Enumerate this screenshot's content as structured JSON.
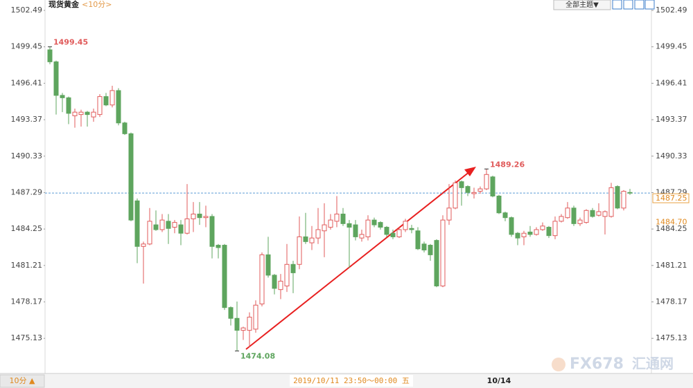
{
  "chart_data": {
    "type": "candlestick",
    "title": "现货黄金",
    "subtitle": "<10分>",
    "toolbar": "全部主题▼",
    "period_button": "10分 ▲",
    "cursor_label": "2019/10/11 23:50～00:00 五",
    "watermark": [
      "FX678",
      "汇通网"
    ],
    "up_color": "#e05a5a",
    "down_color": "#5ea55e",
    "ylim": [
      1472.2,
      1502.49
    ],
    "yticks": [
      1475.13,
      1478.17,
      1481.21,
      1484.25,
      1487.29,
      1490.33,
      1493.37,
      1496.41,
      1499.45,
      1502.49
    ],
    "categories": [
      null,
      null,
      null,
      null,
      null,
      null,
      null,
      null,
      null,
      null,
      null,
      null,
      null,
      null,
      null,
      null,
      null,
      null,
      null,
      null,
      null,
      null,
      null,
      null,
      null,
      null,
      null,
      null,
      null,
      null,
      null,
      null,
      null,
      null,
      null,
      null,
      null,
      null,
      null,
      null,
      null,
      null,
      null,
      null,
      null,
      null,
      null,
      null,
      null,
      null,
      null,
      null,
      null,
      null,
      null,
      null,
      null,
      null,
      null,
      null,
      null,
      null,
      null,
      null,
      null,
      null,
      null,
      null,
      null,
      null,
      null,
      null,
      "10/14",
      null,
      null,
      null,
      null,
      null,
      null,
      null,
      null,
      null,
      null,
      null,
      null,
      null,
      null,
      null,
      null,
      null,
      null,
      null,
      null,
      null
    ],
    "open": [
      1499.2,
      1498.2,
      1495.4,
      1495.2,
      1493.7,
      1493.8,
      1494.0,
      1493.6,
      1493.8,
      1495.3,
      1494.6,
      1495.8,
      1493.1,
      1492.2,
      1486.6,
      1482.8,
      1483.0,
      1484.6,
      1484.2,
      1484.9,
      1484.4,
      1484.6,
      1483.9,
      1485.1,
      1485.5,
      1485.2,
      1485.3,
      1482.9,
      1482.9,
      1477.7,
      1476.8,
      1475.8,
      1475.8,
      1475.9,
      1478.0,
      1482.1,
      1480.4,
      1479.2,
      1479.5,
      1481.3,
      1481.3,
      1483.6,
      1483.1,
      1483.5,
      1484.1,
      1484.4,
      1484.9,
      1485.5,
      1484.7,
      1484.6,
      1483.5,
      1483.6,
      1485.0,
      1484.8,
      1484.4,
      1483.9,
      1483.6,
      1484.2,
      1484.3,
      1484.1,
      1483.0,
      1482.9,
      1483.3,
      1479.5,
      1485.0,
      1486.0,
      1488.2,
      1487.8,
      1487.2,
      1487.4,
      1487.6,
      1488.6,
      1487.0,
      1485.6,
      1485.2,
      1483.9,
      1483.6,
      1484.0,
      1483.8,
      1484.2,
      1484.4,
      1483.7,
      1484.9,
      1485.2,
      1486.0,
      1484.7,
      1484.8,
      1485.8,
      1485.4,
      1485.3,
      1485.3,
      1487.8,
      1486.0,
      1487.3
    ],
    "close": [
      1498.2,
      1495.4,
      1495.2,
      1493.9,
      1494.0,
      1494.0,
      1493.8,
      1494.0,
      1495.3,
      1494.6,
      1495.8,
      1493.1,
      1492.2,
      1485.0,
      1482.8,
      1483.0,
      1484.9,
      1484.2,
      1485.0,
      1484.3,
      1484.8,
      1483.9,
      1485.1,
      1485.5,
      1485.2,
      1485.3,
      1482.8,
      1482.7,
      1477.7,
      1476.8,
      1475.8,
      1476.0,
      1476.9,
      1477.9,
      1482.1,
      1480.4,
      1479.3,
      1479.9,
      1481.3,
      1480.6,
      1483.6,
      1483.2,
      1483.5,
      1484.2,
      1484.6,
      1485.0,
      1485.5,
      1484.7,
      1484.4,
      1483.6,
      1483.8,
      1485.0,
      1484.6,
      1484.4,
      1483.8,
      1483.6,
      1484.2,
      1484.9,
      1484.2,
      1482.6,
      1482.5,
      1482.1,
      1479.5,
      1485.0,
      1486.0,
      1488.1,
      1487.7,
      1487.3,
      1487.3,
      1487.6,
      1488.8,
      1487.0,
      1485.6,
      1485.2,
      1483.8,
      1483.5,
      1483.9,
      1483.8,
      1484.2,
      1484.5,
      1483.7,
      1484.9,
      1485.3,
      1486.0,
      1484.7,
      1485.0,
      1485.8,
      1485.3,
      1485.7,
      1485.7,
      1487.7,
      1486.0,
      1487.4,
      1487.25
    ],
    "high": [
      1499.45,
      1498.3,
      1495.6,
      1495.3,
      1494.3,
      1494.2,
      1494.1,
      1494.3,
      1495.5,
      1495.6,
      1496.2,
      1496.0,
      1493.2,
      1492.3,
      1486.8,
      1483.2,
      1486.0,
      1485.8,
      1485.5,
      1485.5,
      1485.0,
      1485.0,
      1488.0,
      1486.5,
      1486.5,
      1486.2,
      1485.5,
      1483.0,
      1483.0,
      1477.8,
      1478.2,
      1476.1,
      1477.3,
      1478.3,
      1482.3,
      1483.6,
      1480.5,
      1480.5,
      1483.0,
      1481.6,
      1485.3,
      1485.6,
      1484.5,
      1486.0,
      1486.4,
      1485.5,
      1487.0,
      1486.0,
      1485.0,
      1485.0,
      1484.2,
      1485.4,
      1485.2,
      1484.9,
      1484.5,
      1484.2,
      1484.4,
      1485.1,
      1484.6,
      1484.4,
      1483.2,
      1483.0,
      1483.4,
      1485.4,
      1488.0,
      1488.3,
      1488.3,
      1487.9,
      1487.7,
      1487.8,
      1489.26,
      1488.7,
      1487.1,
      1485.7,
      1485.3,
      1484.0,
      1484.1,
      1484.5,
      1484.4,
      1484.8,
      1484.5,
      1485.3,
      1485.5,
      1486.5,
      1486.2,
      1485.2,
      1485.9,
      1486.0,
      1486.4,
      1485.8,
      1488.1,
      1487.9,
      1487.5,
      1487.6
    ],
    "low": [
      1498.0,
      1493.8,
      1494.0,
      1493.0,
      1492.7,
      1492.8,
      1492.8,
      1493.2,
      1493.6,
      1494.5,
      1494.4,
      1492.9,
      1492.1,
      1484.9,
      1481.4,
      1479.7,
      1482.9,
      1484.1,
      1484.0,
      1483.0,
      1483.9,
      1482.9,
      1483.8,
      1484.0,
      1484.6,
      1484.4,
      1481.8,
      1481.8,
      1477.5,
      1476.2,
      1474.08,
      1475.0,
      1474.4,
      1475.6,
      1477.8,
      1480.2,
      1478.8,
      1478.4,
      1479.0,
      1478.9,
      1480.9,
      1483.0,
      1482.5,
      1483.0,
      1481.9,
      1484.2,
      1484.4,
      1484.5,
      1481.0,
      1483.3,
      1483.2,
      1483.3,
      1484.4,
      1484.2,
      1483.6,
      1483.4,
      1483.5,
      1484.0,
      1483.9,
      1482.5,
      1482.3,
      1481.6,
      1479.4,
      1479.4,
      1484.6,
      1485.9,
      1486.2,
      1487.0,
      1486.8,
      1487.2,
      1487.5,
      1486.9,
      1485.5,
      1484.9,
      1483.6,
      1482.9,
      1482.9,
      1483.6,
      1483.7,
      1484.1,
      1483.5,
      1483.4,
      1484.8,
      1485.1,
      1484.5,
      1484.5,
      1484.7,
      1485.2,
      1485.3,
      1483.8,
      1485.2,
      1485.9,
      1485.8,
      1487.1
    ],
    "high_labels": [
      1499.45,
      1489.26
    ],
    "low_labels": [
      1474.08
    ],
    "price_markers": [
      1487.25,
      {
        "value": 1484.7,
        "label": "1484.70"
      }
    ]
  }
}
